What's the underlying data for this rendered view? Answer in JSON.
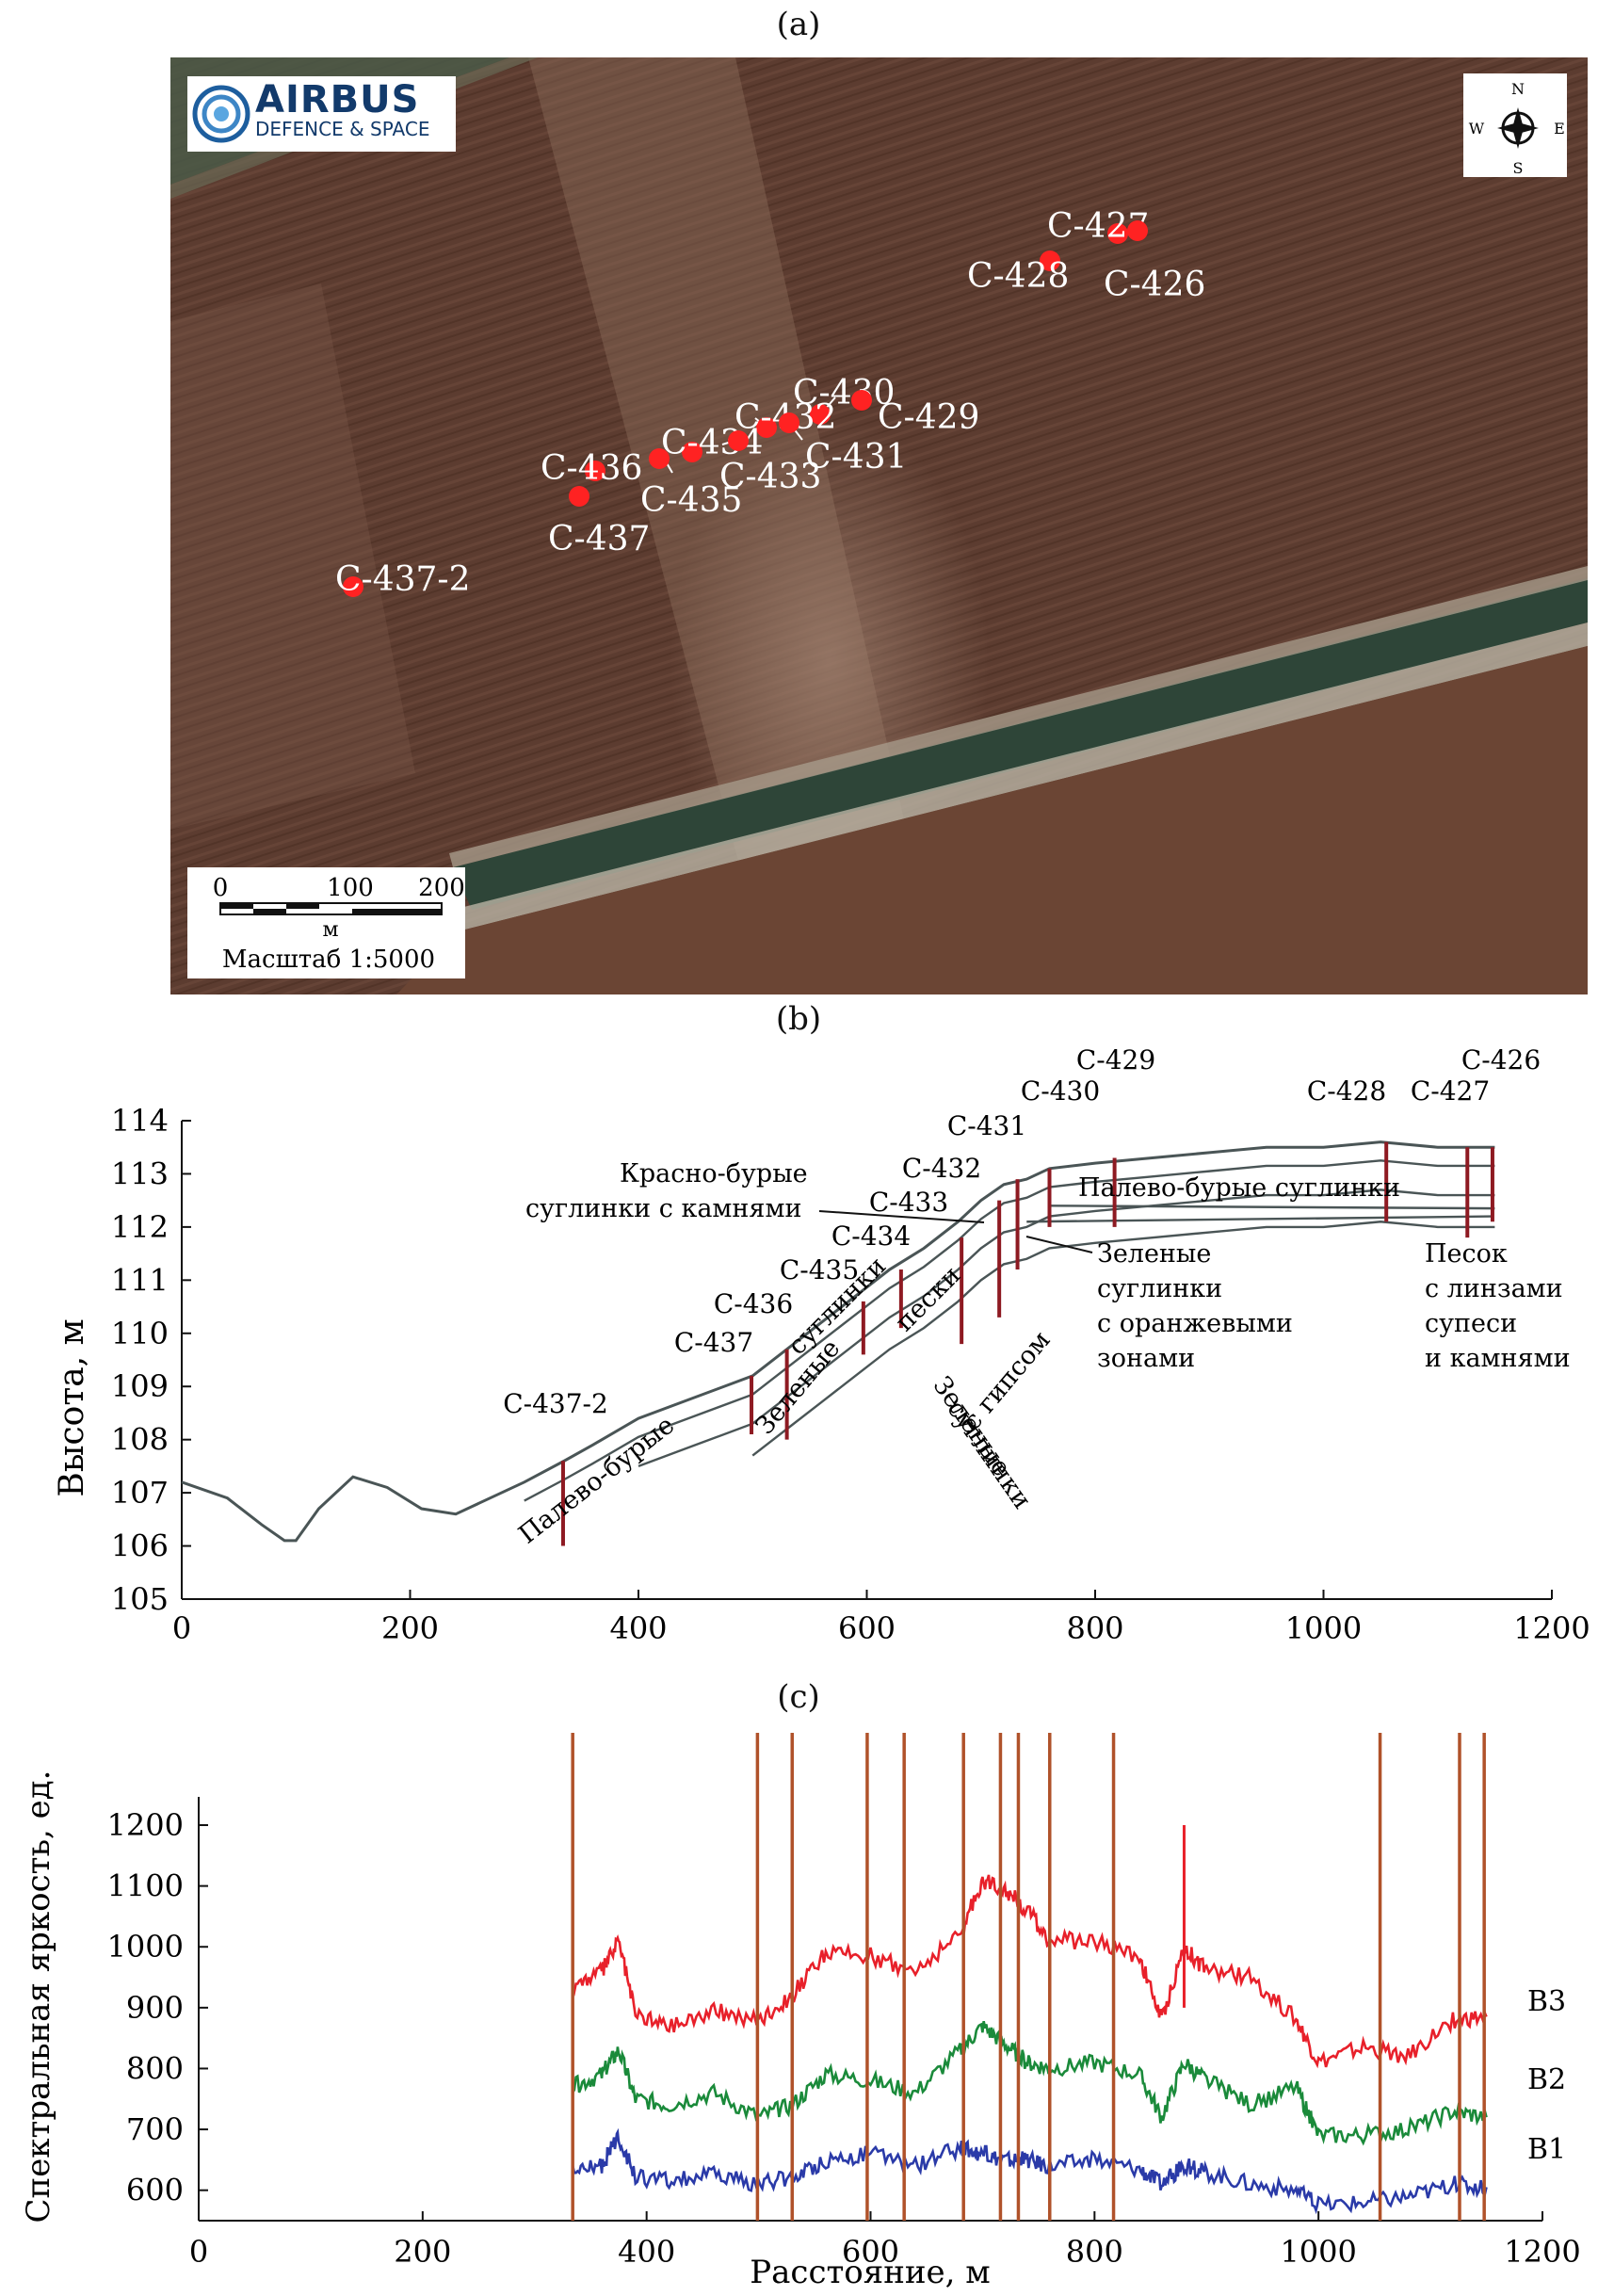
{
  "panels": {
    "a_label": "(a)",
    "b_label": "(b)",
    "c_label": "(c)"
  },
  "map": {
    "logo": {
      "brand": "AIRBUS",
      "sub": "DEFENCE & SPACE"
    },
    "compass": {
      "n": "N",
      "s": "S",
      "w": "W",
      "e": "E"
    },
    "scale": {
      "ticks": [
        "0",
        "100",
        "200"
      ],
      "unit": "м",
      "caption": "Масштаб 1:5000"
    },
    "points": [
      {
        "id": "C-427",
        "label": "C-427"
      },
      {
        "id": "C-426",
        "label": "C-426"
      },
      {
        "id": "C-428",
        "label": "C-428"
      },
      {
        "id": "C-430",
        "label": "C-430"
      },
      {
        "id": "C-429",
        "label": "C-429"
      },
      {
        "id": "C-432",
        "label": "C-432"
      },
      {
        "id": "C-431",
        "label": "C-431"
      },
      {
        "id": "C-434",
        "label": "C-434"
      },
      {
        "id": "C-433",
        "label": "C-433"
      },
      {
        "id": "C-436",
        "label": "C-436"
      },
      {
        "id": "C-435",
        "label": "C-435"
      },
      {
        "id": "C-437",
        "label": "C-437"
      },
      {
        "id": "C-437-2",
        "label": "C-437-2"
      }
    ],
    "colors": {
      "ground": "#5a3a2e",
      "marker": "#ff2222",
      "trees": "#2f4a3a"
    }
  },
  "chart_data": [
    {
      "type": "line",
      "panel": "b",
      "title": "",
      "xlabel": "",
      "ylabel": "Высота, м",
      "xlim": [
        0,
        1200
      ],
      "ylim": [
        105,
        114
      ],
      "xticks": [
        "0",
        "200",
        "400",
        "600",
        "800",
        "1000",
        "1200"
      ],
      "yticks": [
        "105",
        "106",
        "107",
        "108",
        "109",
        "110",
        "111",
        "112",
        "113",
        "114"
      ],
      "series": [
        {
          "x": [
            0,
            40,
            70,
            90,
            100,
            120,
            150,
            180,
            210,
            240,
            300,
            335,
            360,
            400,
            450,
            500,
            530,
            560,
            590,
            620,
            650,
            680,
            700,
            720,
            740,
            760,
            800,
            850,
            900,
            950,
            1000,
            1050,
            1100,
            1150
          ],
          "values": [
            107.2,
            106.9,
            106.4,
            106.1,
            106.1,
            106.7,
            107.3,
            107.1,
            106.7,
            106.6,
            107.2,
            107.6,
            107.9,
            108.4,
            108.8,
            109.2,
            109.7,
            110.2,
            110.7,
            111.2,
            111.6,
            112.1,
            112.5,
            112.8,
            112.9,
            113.1,
            113.2,
            113.3,
            113.4,
            113.5,
            113.5,
            113.6,
            113.5,
            113.5
          ]
        }
      ],
      "boreholes": [
        {
          "name": "C-437-2",
          "x": 334,
          "top": 107.6,
          "bottom": 106.0
        },
        {
          "name": "C-437",
          "x": 499,
          "top": 109.2,
          "bottom": 108.1
        },
        {
          "name": "C-436",
          "x": 530,
          "top": 109.7,
          "bottom": 108.0
        },
        {
          "name": "C-435",
          "x": 597,
          "top": 110.6,
          "bottom": 109.6
        },
        {
          "name": "C-434",
          "x": 630,
          "top": 111.2,
          "bottom": 110.1
        },
        {
          "name": "C-433",
          "x": 683,
          "top": 111.8,
          "bottom": 109.8
        },
        {
          "name": "C-432",
          "x": 716,
          "top": 112.5,
          "bottom": 110.3
        },
        {
          "name": "C-431",
          "x": 732,
          "top": 112.9,
          "bottom": 111.2
        },
        {
          "name": "C-430",
          "x": 760,
          "top": 113.1,
          "bottom": 112.0
        },
        {
          "name": "C-429",
          "x": 817,
          "top": 113.3,
          "bottom": 112.0
        },
        {
          "name": "C-428",
          "x": 1055,
          "top": 113.6,
          "bottom": 112.1
        },
        {
          "name": "C-427",
          "x": 1126,
          "top": 113.5,
          "bottom": 111.8
        },
        {
          "name": "C-426",
          "x": 1148,
          "top": 113.5,
          "bottom": 112.1
        }
      ],
      "annotations": [
        "Красно-бурые",
        "суглинки с камнями",
        "Палево-бурые суглинки",
        "Зеленые",
        "суглинки",
        "с  оранжевыми",
        "зонами",
        "Песок",
        "с линзами",
        "супеси",
        "и камнями",
        "Зеленые",
        "суглинки",
        "с гипсом",
        "Палево-бурые",
        "Зеленые",
        "суглинки",
        "пески"
      ]
    },
    {
      "type": "line",
      "panel": "c",
      "title": "",
      "xlabel": "Расстояние, м",
      "ylabel": "Спектральная яркость, ед.",
      "xlim": [
        0,
        1200
      ],
      "ylim": [
        550,
        1200
      ],
      "xticks": [
        "0",
        "200",
        "400",
        "600",
        "800",
        "1000",
        "1200"
      ],
      "yticks": [
        "600",
        "700",
        "800",
        "900",
        "1000",
        "1100",
        "1200"
      ],
      "series": [
        {
          "name": "B3",
          "x": [
            334,
            360,
            375,
            390,
            420,
            460,
            500,
            530,
            560,
            600,
            640,
            680,
            700,
            720,
            740,
            760,
            800,
            840,
            860,
            880,
            900,
            940,
            980,
            1000,
            1040,
            1080,
            1120,
            1150
          ],
          "values": [
            935,
            960,
            1010,
            890,
            870,
            895,
            880,
            920,
            990,
            985,
            960,
            1020,
            1110,
            1095,
            1060,
            1010,
            1010,
            985,
            880,
            1000,
            960,
            950,
            880,
            810,
            835,
            820,
            880,
            885
          ]
        },
        {
          "name": "B2",
          "x": [
            334,
            360,
            375,
            390,
            420,
            460,
            500,
            530,
            560,
            600,
            640,
            680,
            700,
            720,
            740,
            760,
            800,
            840,
            860,
            880,
            900,
            940,
            980,
            1000,
            1040,
            1080,
            1120,
            1150
          ],
          "values": [
            770,
            790,
            830,
            750,
            740,
            760,
            720,
            740,
            790,
            780,
            760,
            830,
            870,
            840,
            810,
            800,
            810,
            790,
            720,
            810,
            780,
            740,
            770,
            690,
            690,
            700,
            730,
            720
          ]
        },
        {
          "name": "B1",
          "x": [
            334,
            360,
            375,
            390,
            420,
            460,
            500,
            530,
            560,
            600,
            640,
            680,
            700,
            720,
            740,
            760,
            800,
            840,
            860,
            880,
            900,
            940,
            980,
            1000,
            1040,
            1080,
            1120,
            1150
          ],
          "values": [
            630,
            640,
            690,
            620,
            615,
            625,
            610,
            620,
            650,
            660,
            640,
            670,
            660,
            650,
            650,
            640,
            650,
            635,
            610,
            640,
            630,
            610,
            600,
            575,
            580,
            590,
            610,
            605
          ]
        }
      ],
      "vlines": [
        334,
        499,
        530,
        597,
        630,
        683,
        716,
        732,
        760,
        817,
        1055,
        1126,
        1148
      ],
      "legend_position": "right",
      "colors": {
        "B3": "#e8202a",
        "B2": "#1a8a3a",
        "B1": "#2a3aa8",
        "vline": "#b0522a"
      }
    }
  ]
}
